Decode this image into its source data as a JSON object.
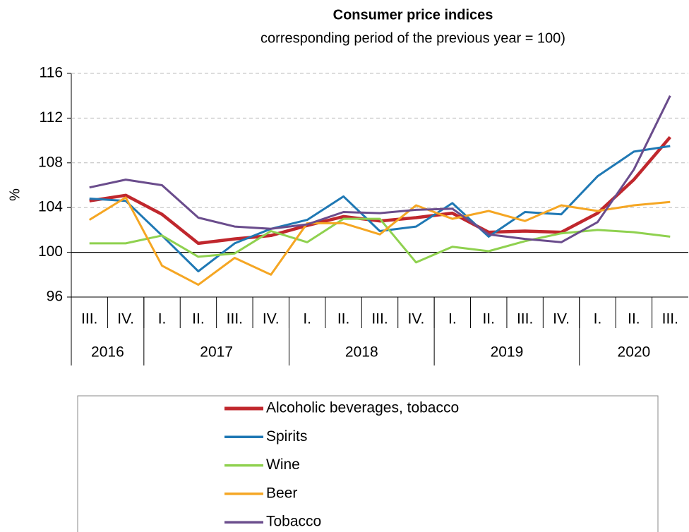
{
  "chart_data": {
    "type": "line",
    "title": "Consumer price indices",
    "subtitle": "corresponding period of the previous year = 100)",
    "y_label": "%",
    "categories": [
      "III.",
      "IV.",
      "I.",
      "II.",
      "III.",
      "IV.",
      "I.",
      "II.",
      "III.",
      "IV.",
      "I.",
      "II.",
      "III.",
      "IV.",
      "I.",
      "II.",
      "III."
    ],
    "groups": [
      {
        "label": "2016",
        "span": 2
      },
      {
        "label": "2017",
        "span": 4
      },
      {
        "label": "2018",
        "span": 4
      },
      {
        "label": "2019",
        "span": 4
      },
      {
        "label": "2020",
        "span": 3
      }
    ],
    "ylim": [
      96,
      116
    ],
    "yticks": [
      96,
      100,
      104,
      108,
      112,
      116
    ],
    "grid": true,
    "baseline": 100,
    "legend": "bottom",
    "series": [
      {
        "name": "Alcoholic beverages, tobacco",
        "color": "#c0272d",
        "values": [
          104.6,
          105.1,
          103.4,
          100.8,
          101.2,
          101.5,
          102.4,
          103.2,
          102.8,
          103.1,
          103.5,
          101.8,
          101.9,
          101.8,
          103.5,
          106.5,
          110.3
        ]
      },
      {
        "name": "Spirits",
        "color": "#1f78b4",
        "values": [
          104.8,
          104.6,
          101.5,
          98.3,
          100.8,
          102.1,
          102.9,
          105.0,
          101.9,
          102.3,
          104.4,
          101.4,
          103.6,
          103.4,
          106.8,
          109.0,
          109.5
        ]
      },
      {
        "name": "Wine",
        "color": "#8fd14f",
        "values": [
          100.8,
          100.8,
          101.5,
          99.6,
          99.9,
          101.9,
          100.9,
          103.0,
          103.0,
          99.1,
          100.5,
          100.1,
          101.0,
          101.7,
          102.0,
          101.8,
          101.4
        ]
      },
      {
        "name": "Beer",
        "color": "#f5a623",
        "values": [
          102.9,
          104.9,
          98.8,
          97.1,
          99.5,
          98.0,
          102.6,
          102.6,
          101.6,
          104.2,
          103.0,
          103.7,
          102.8,
          104.2,
          103.7,
          104.2,
          104.5
        ]
      },
      {
        "name": "Tobacco",
        "color": "#6a4c8c",
        "values": [
          105.8,
          106.5,
          106.0,
          103.1,
          102.3,
          102.1,
          102.5,
          103.6,
          103.5,
          103.8,
          103.9,
          101.6,
          101.2,
          100.9,
          102.7,
          107.4,
          114.0
        ]
      }
    ]
  }
}
